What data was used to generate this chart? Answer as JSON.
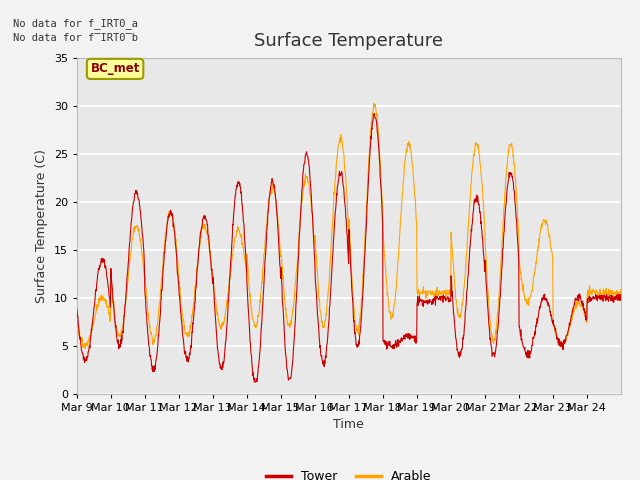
{
  "title": "Surface Temperature",
  "xlabel": "Time",
  "ylabel": "Surface Temperature (C)",
  "ylim": [
    0,
    35
  ],
  "yticks": [
    0,
    5,
    10,
    15,
    20,
    25,
    30,
    35
  ],
  "xtick_labels": [
    "Mar 9",
    "Mar 10",
    "Mar 11",
    "Mar 12",
    "Mar 13",
    "Mar 14",
    "Mar 15",
    "Mar 16",
    "Mar 17",
    "Mar 18",
    "Mar 19",
    "Mar 20",
    "Mar 21",
    "Mar 22",
    "Mar 23",
    "Mar 24"
  ],
  "no_data_text_1": "No data for f_IRT0_a",
  "no_data_text_2": "No data for f̅IRT0̅b",
  "legend_box_label": "BC_met",
  "legend_box_color": "#FFFF99",
  "legend_box_border": "#999900",
  "tower_color": "#CC0000",
  "arable_color": "#FFA500",
  "plot_bg_color": "#E8E8E8",
  "fig_bg_color": "#F2F2F2",
  "grid_color": "#FFFFFF",
  "title_fontsize": 13,
  "axis_label_fontsize": 9,
  "tick_fontsize": 8,
  "num_days": 16,
  "points_per_day": 96,
  "tower_peaks": [
    14,
    21,
    19,
    18.5,
    22,
    22,
    25,
    23,
    29,
    6,
    10,
    20.5,
    23,
    10,
    10,
    10
  ],
  "tower_troughs": [
    3.5,
    5,
    2.5,
    3.5,
    2.5,
    1,
    1.5,
    3,
    5,
    5,
    9.5,
    4,
    4,
    4,
    5,
    10
  ],
  "arable_peaks": [
    10,
    17.5,
    19,
    17.5,
    17,
    21.5,
    22.5,
    26.5,
    30,
    26,
    10.5,
    26,
    26,
    18,
    9.5,
    10.5
  ],
  "arable_troughs": [
    5,
    6,
    5.5,
    6,
    7,
    7,
    7,
    7,
    6.5,
    8,
    10.5,
    8,
    5.5,
    9.5,
    5,
    10.5
  ]
}
